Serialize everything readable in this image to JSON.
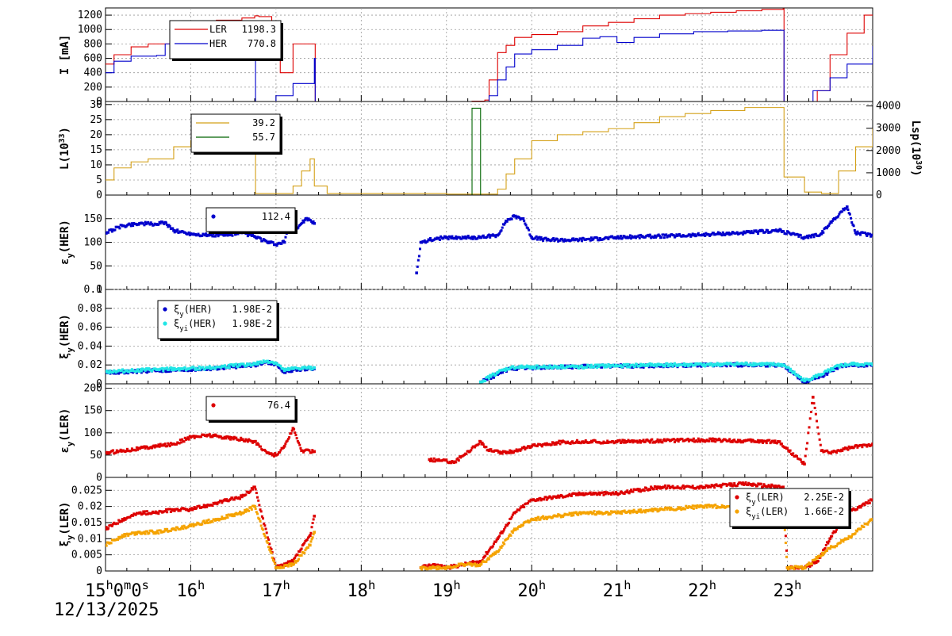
{
  "colors": {
    "red": "#dd0000",
    "blue": "#0000cc",
    "gold": "#d4a017",
    "green": "#006400",
    "cyan": "#22e6e6",
    "orange": "#f5a300",
    "grid": "#9a9a9a"
  },
  "footer": {
    "start_time": "15h0m0s",
    "date": "12/13/2025"
  },
  "chart_data": [
    {
      "type": "line",
      "ylabel": "I [mA]",
      "ylim": [
        0,
        1300
      ],
      "yticks": [
        "0",
        "200",
        "400",
        "600",
        "800",
        "1000",
        "1200"
      ],
      "xlim": [
        15,
        24
      ],
      "xticks": [
        "15h0m0s",
        "16h",
        "17h",
        "18h",
        "19h",
        "20h",
        "21h",
        "22h",
        "23h"
      ],
      "grid": true,
      "legend": {
        "placement": "top-left",
        "entries": [
          {
            "label": "LER",
            "value": "1198.3",
            "color": "#dd0000"
          },
          {
            "label": "HER",
            "value": "770.8",
            "color": "#0000cc"
          }
        ]
      },
      "series": [
        {
          "name": "LER",
          "x": [
            15.0,
            15.1,
            15.3,
            15.5,
            15.7,
            16.0,
            16.3,
            16.6,
            16.75,
            16.8,
            16.95,
            17.05,
            17.2,
            17.45,
            17.46,
            17.5,
            19.0,
            19.3,
            19.45,
            19.5,
            19.6,
            19.7,
            19.8,
            20.0,
            20.3,
            20.6,
            20.9,
            21.2,
            21.5,
            21.8,
            22.1,
            22.4,
            22.7,
            22.95,
            22.96,
            23.0,
            23.2,
            23.35,
            23.5,
            23.7,
            23.9,
            24.0
          ],
          "values": [
            520,
            650,
            760,
            800,
            800,
            1100,
            1130,
            1160,
            1190,
            1180,
            600,
            400,
            800,
            800,
            0,
            0,
            0,
            5,
            20,
            300,
            680,
            780,
            890,
            930,
            970,
            1050,
            1100,
            1150,
            1200,
            1220,
            1240,
            1260,
            1280,
            1290,
            0,
            0,
            0,
            150,
            650,
            950,
            1200,
            1200
          ]
        },
        {
          "name": "HER",
          "x": [
            15.0,
            15.1,
            15.3,
            15.6,
            15.7,
            16.0,
            16.5,
            16.7,
            16.75,
            16.76,
            16.85,
            17.0,
            17.2,
            17.45,
            17.46,
            17.5,
            19.0,
            19.3,
            19.5,
            19.6,
            19.7,
            19.8,
            20.0,
            20.3,
            20.6,
            20.8,
            21.0,
            21.2,
            21.5,
            21.9,
            22.3,
            22.7,
            22.95,
            22.96,
            23.1,
            23.3,
            23.5,
            23.7,
            24.0
          ],
          "values": [
            400,
            560,
            630,
            640,
            800,
            870,
            930,
            950,
            960,
            0,
            0,
            80,
            250,
            600,
            0,
            0,
            0,
            0,
            80,
            300,
            480,
            660,
            720,
            780,
            880,
            900,
            820,
            890,
            940,
            970,
            980,
            990,
            990,
            0,
            0,
            150,
            330,
            520,
            770
          ]
        }
      ]
    },
    {
      "type": "line",
      "ylabel": "L(10^33)",
      "y2label": "Lsp(10^30)",
      "ylim": [
        0,
        31
      ],
      "yticks": [
        "0",
        "5",
        "10",
        "15",
        "20",
        "25",
        "30"
      ],
      "y2lim": [
        0,
        4200
      ],
      "y2ticks": [
        "0",
        "1000",
        "2000",
        "3000",
        "4000"
      ],
      "xlim": [
        15,
        24
      ],
      "grid": true,
      "legend": {
        "placement": "top-left",
        "entries": [
          {
            "label": "",
            "value": "39.2",
            "color": "#d4a017"
          },
          {
            "label": "",
            "value": "55.7",
            "color": "#006400"
          }
        ]
      },
      "series": [
        {
          "name": "L",
          "x": [
            15.0,
            15.1,
            15.3,
            15.5,
            15.7,
            15.8,
            16.0,
            16.3,
            16.6,
            16.75,
            16.76,
            17.0,
            17.2,
            17.3,
            17.4,
            17.45,
            17.6,
            18.0,
            18.5,
            19.0,
            19.5,
            19.6,
            19.7,
            19.8,
            20.0,
            20.3,
            20.6,
            20.9,
            21.2,
            21.5,
            21.8,
            22.1,
            22.5,
            22.95,
            22.96,
            23.2,
            23.4,
            23.6,
            23.8,
            24.0
          ],
          "values": [
            5,
            9,
            11,
            12,
            12,
            16,
            18,
            20,
            23,
            26,
            0.5,
            0.5,
            3,
            8,
            12,
            3,
            0.5,
            0.5,
            0.5,
            0.3,
            0.3,
            2,
            7,
            12,
            18,
            20,
            21,
            22,
            24,
            26,
            27,
            28,
            29,
            29,
            6,
            1,
            0.5,
            8,
            16,
            22
          ]
        },
        {
          "name": "Lsp",
          "x": [
            15.0,
            19.0,
            19.15,
            19.3,
            19.4,
            19.5,
            24.0
          ],
          "values": [
            0,
            0,
            0,
            3900,
            0,
            0,
            0
          ]
        }
      ]
    },
    {
      "type": "scatter",
      "ylabel": "εy(HER)",
      "ylim": [
        0,
        200
      ],
      "yticks": [
        "0",
        "50",
        "100",
        "150"
      ],
      "xlim": [
        15,
        24
      ],
      "grid": true,
      "legend": {
        "placement": "top-left",
        "entries": [
          {
            "label": "",
            "value": "112.4",
            "color": "#0000cc"
          }
        ]
      },
      "series": [
        {
          "name": "",
          "x": [
            15.0,
            15.2,
            15.4,
            15.6,
            15.7,
            15.8,
            16.0,
            16.2,
            16.4,
            16.6,
            16.75,
            16.9,
            17.0,
            17.1,
            17.15,
            17.25,
            17.35,
            17.45,
            18.65,
            18.7,
            18.8,
            18.9,
            19.0,
            19.2,
            19.4,
            19.6,
            19.7,
            19.8,
            19.9,
            20.0,
            20.2,
            20.5,
            20.8,
            21.0,
            21.3,
            21.6,
            21.9,
            22.2,
            22.5,
            22.9,
            23.2,
            23.4,
            23.55,
            23.7,
            23.8,
            24.0
          ],
          "values": [
            120,
            135,
            140,
            138,
            142,
            125,
            118,
            115,
            115,
            120,
            112,
            100,
            95,
            100,
            140,
            130,
            150,
            140,
            35,
            100,
            105,
            108,
            110,
            110,
            110,
            115,
            145,
            155,
            150,
            110,
            105,
            105,
            108,
            110,
            112,
            113,
            115,
            118,
            120,
            125,
            110,
            118,
            150,
            175,
            120,
            115
          ]
        }
      ]
    },
    {
      "type": "scatter",
      "ylabel": "ξy(HER)",
      "ylim": [
        0,
        0.1
      ],
      "yticks": [
        "0",
        "0.02",
        "0.04",
        "0.06",
        "0.08",
        "0.1"
      ],
      "xlim": [
        15,
        24
      ],
      "grid": true,
      "legend": {
        "placement": "top-left",
        "entries": [
          {
            "label": "ξy(HER)",
            "value": "1.98E-2",
            "color": "#0000cc"
          },
          {
            "label": "ξyi(HER)",
            "value": "1.98E-2",
            "color": "#22e6e6"
          }
        ]
      },
      "series": [
        {
          "name": "ξy(HER)",
          "x": [
            15.0,
            15.3,
            15.6,
            15.9,
            16.2,
            16.5,
            16.75,
            16.9,
            17.0,
            17.1,
            17.2,
            17.45,
            19.4,
            19.6,
            19.75,
            20.0,
            20.5,
            21.0,
            21.5,
            22.0,
            22.5,
            22.95,
            23.2,
            23.4,
            23.6,
            23.8,
            24.0
          ],
          "values": [
            0.012,
            0.013,
            0.014,
            0.015,
            0.016,
            0.018,
            0.02,
            0.023,
            0.021,
            0.012,
            0.015,
            0.016,
            0.002,
            0.01,
            0.016,
            0.017,
            0.018,
            0.019,
            0.019,
            0.02,
            0.02,
            0.02,
            0.002,
            0.008,
            0.018,
            0.02,
            0.02
          ]
        },
        {
          "name": "ξyi(HER)",
          "x": [
            15.0,
            15.3,
            15.6,
            15.9,
            16.2,
            16.5,
            16.75,
            16.9,
            17.0,
            17.1,
            17.2,
            17.45,
            19.4,
            19.6,
            19.75,
            20.0,
            20.5,
            21.0,
            21.5,
            22.0,
            22.5,
            22.95,
            23.2,
            23.4,
            23.6,
            23.8,
            24.0
          ],
          "values": [
            0.013,
            0.014,
            0.015,
            0.016,
            0.017,
            0.019,
            0.021,
            0.024,
            0.022,
            0.014,
            0.016,
            0.017,
            0.002,
            0.012,
            0.017,
            0.018,
            0.018,
            0.019,
            0.02,
            0.02,
            0.021,
            0.02,
            0.003,
            0.01,
            0.019,
            0.021,
            0.02
          ]
        }
      ]
    },
    {
      "type": "scatter",
      "ylabel": "εy(LER)",
      "ylim": [
        0,
        210
      ],
      "yticks": [
        "0",
        "50",
        "100",
        "150",
        "200"
      ],
      "xlim": [
        15,
        24
      ],
      "grid": true,
      "legend": {
        "placement": "top-left",
        "entries": [
          {
            "label": "",
            "value": "76.4",
            "color": "#dd0000"
          }
        ]
      },
      "series": [
        {
          "name": "",
          "x": [
            15.0,
            15.2,
            15.4,
            15.6,
            15.8,
            16.0,
            16.2,
            16.4,
            16.6,
            16.75,
            16.9,
            17.0,
            17.1,
            17.2,
            17.3,
            17.45,
            18.8,
            19.1,
            19.4,
            19.5,
            19.7,
            20.0,
            20.3,
            20.6,
            21.0,
            21.5,
            22.0,
            22.5,
            22.9,
            23.2,
            23.3,
            23.4,
            23.5,
            23.7,
            24.0
          ],
          "values": [
            55,
            60,
            65,
            70,
            75,
            90,
            95,
            90,
            85,
            80,
            55,
            50,
            70,
            110,
            60,
            58,
            40,
            35,
            80,
            60,
            55,
            70,
            78,
            80,
            80,
            82,
            84,
            82,
            80,
            30,
            180,
            60,
            55,
            65,
            75
          ]
        }
      ]
    },
    {
      "type": "scatter",
      "ylabel": "ξy(LER)",
      "ylim": [
        0,
        0.029
      ],
      "yticks": [
        "0",
        "0.005",
        "0.01",
        "0.015",
        "0.02",
        "0.025"
      ],
      "xlim": [
        15,
        24
      ],
      "grid": true,
      "legend": {
        "placement": "top-right",
        "entries": [
          {
            "label": "ξy(LER)",
            "value": "2.25E-2",
            "color": "#dd0000"
          },
          {
            "label": "ξyi(LER)",
            "value": "1.66E-2",
            "color": "#f5a300"
          }
        ]
      },
      "series": [
        {
          "name": "ξy(LER)",
          "x": [
            15.0,
            15.2,
            15.4,
            15.6,
            15.8,
            16.0,
            16.3,
            16.6,
            16.75,
            17.0,
            17.2,
            17.4,
            17.45,
            18.7,
            18.85,
            19.0,
            19.2,
            19.4,
            19.6,
            19.8,
            20.0,
            20.3,
            20.6,
            21.0,
            21.5,
            22.0,
            22.5,
            22.95,
            23.0,
            23.2,
            23.35,
            23.5,
            23.7,
            23.85,
            24.0
          ],
          "values": [
            0.013,
            0.016,
            0.018,
            0.018,
            0.019,
            0.019,
            0.021,
            0.023,
            0.026,
            0.001,
            0.003,
            0.011,
            0.017,
            0.001,
            0.002,
            0.001,
            0.002,
            0.003,
            0.01,
            0.018,
            0.022,
            0.023,
            0.024,
            0.024,
            0.026,
            0.026,
            0.027,
            0.026,
            0.001,
            0.001,
            0.003,
            0.01,
            0.018,
            0.02,
            0.022
          ]
        },
        {
          "name": "ξyi(LER)",
          "x": [
            15.0,
            15.2,
            15.4,
            15.6,
            15.8,
            16.0,
            16.3,
            16.6,
            16.75,
            17.0,
            17.2,
            17.4,
            17.45,
            18.7,
            18.85,
            19.0,
            19.2,
            19.4,
            19.6,
            19.8,
            20.0,
            20.3,
            20.6,
            21.0,
            21.5,
            22.0,
            22.5,
            22.95,
            23.0,
            23.2,
            23.35,
            23.5,
            23.7,
            23.85,
            24.0
          ],
          "values": [
            0.008,
            0.011,
            0.012,
            0.012,
            0.013,
            0.014,
            0.016,
            0.018,
            0.02,
            0.001,
            0.002,
            0.008,
            0.012,
            0.001,
            0.001,
            0.001,
            0.002,
            0.002,
            0.006,
            0.013,
            0.016,
            0.017,
            0.018,
            0.018,
            0.019,
            0.02,
            0.02,
            0.02,
            0.001,
            0.001,
            0.004,
            0.007,
            0.01,
            0.013,
            0.016
          ]
        }
      ]
    }
  ]
}
